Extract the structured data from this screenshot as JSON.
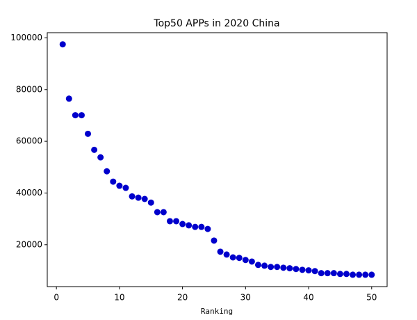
{
  "chart_data": {
    "type": "scatter",
    "title": "Top50 APPs in 2020 China",
    "x_label": "Ranking",
    "color": "#0000cc",
    "x": [
      1,
      2,
      3,
      4,
      5,
      6,
      7,
      8,
      9,
      10,
      11,
      12,
      13,
      14,
      15,
      16,
      17,
      18,
      19,
      20,
      21,
      22,
      23,
      24,
      25,
      26,
      27,
      28,
      29,
      30,
      31,
      32,
      33,
      34,
      35,
      36,
      37,
      38,
      39,
      40,
      41,
      42,
      43,
      44,
      45,
      46,
      47,
      48,
      49,
      50
    ],
    "values": [
      97500,
      76500,
      70100,
      70100,
      62900,
      56700,
      53800,
      48400,
      44400,
      42800,
      42000,
      38700,
      38200,
      37700,
      36300,
      32600,
      32600,
      29100,
      29100,
      28000,
      27500,
      26900,
      26900,
      26100,
      21600,
      17300,
      16200,
      15100,
      14900,
      14100,
      13500,
      12200,
      11900,
      11400,
      11400,
      11100,
      10900,
      10600,
      10300,
      10100,
      9800,
      9000,
      9000,
      9000,
      8700,
      8700,
      8400,
      8400,
      8400,
      8400
    ],
    "xlim": [
      -1.45,
      52.45
    ],
    "xticks": [
      0,
      10,
      20,
      30,
      40,
      50
    ],
    "ylim": [
      3800,
      102000
    ],
    "yticks": [
      20000,
      40000,
      60000,
      80000,
      100000
    ]
  }
}
